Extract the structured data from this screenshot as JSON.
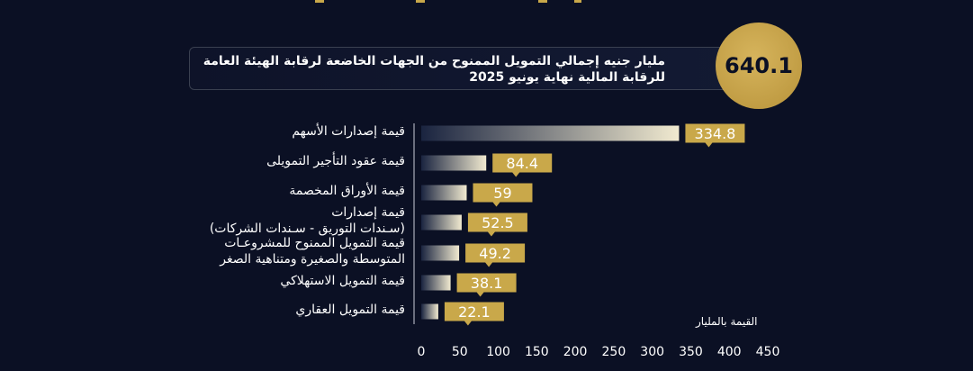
{
  "headline": {
    "total": "640.1",
    "text": "مليار جنيه إجمالي التمويل الممنوح من الجهات الخاضعة لرقابة الهيئة العامة للرقابة المالية نهاية يونيو 2025"
  },
  "colors": {
    "background": "#0b1024",
    "gold": "#c9a84a",
    "bar_start": "#1a2440",
    "bar_end": "#f1ead0"
  },
  "chart_data": {
    "type": "bar",
    "orientation": "horizontal",
    "categories": [
      "قيمة إصدارات الأسهم",
      "قيمة عقود التأجير التمويلى",
      "قيمة الأوراق المخصمة",
      "قيمة إصدارات (سـندات التوريق - سـندات الشركات)",
      "قيمة التمويل الممنوح للمشروعـات المتوسطة والصغيرة ومتناهية الصغر",
      "قيمة التمويل الاستهلاكي",
      "قيمة التمويل العقاري"
    ],
    "category_lines": [
      [
        "قيمة إصدارات الأسهم"
      ],
      [
        "قيمة عقود التأجير التمويلى"
      ],
      [
        "قيمة الأوراق المخصمة"
      ],
      [
        "قيمة إصدارات",
        "(سـندات التوريق - سـندات الشركات)"
      ],
      [
        "قيمة التمويل الممنوح للمشروعـات",
        "المتوسطة والصغيرة ومتناهية الصغر"
      ],
      [
        "قيمة التمويل الاستهلاكي"
      ],
      [
        "قيمة التمويل العقاري"
      ]
    ],
    "values": [
      334.8,
      84.4,
      59,
      52.5,
      49.2,
      38.1,
      22.1
    ],
    "value_labels": [
      "334.8",
      "84.4",
      "59",
      "52.5",
      "49.2",
      "38.1",
      "22.1"
    ],
    "xlim": [
      0,
      450
    ],
    "x_ticks": [
      0,
      50,
      100,
      150,
      200,
      250,
      300,
      350,
      400,
      450
    ],
    "xlabel": "القيمة بالمليار",
    "grid": false
  }
}
